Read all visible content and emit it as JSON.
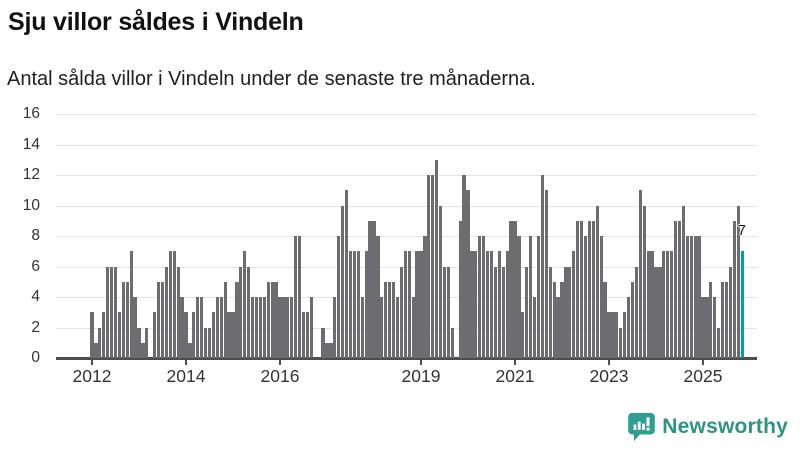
{
  "header": {
    "title": "Sju villor såldes i Vindeln",
    "subtitle": "Antal sålda villor i Vindeln under de senaste tre månaderna."
  },
  "chart_data": {
    "type": "bar",
    "title": "Sju villor såldes i Vindeln",
    "subtitle": "Antal sålda villor i Vindeln under de senaste tre månaderna.",
    "x_start": "2012-01",
    "x_end": "2025-11",
    "x_frequency": "monthly",
    "series_by_year": {
      "2012": [
        3,
        1,
        2,
        3,
        6,
        6,
        6,
        3,
        5,
        5,
        7,
        4
      ],
      "2013": [
        2,
        1,
        2,
        0,
        3,
        5,
        5,
        6,
        7,
        7,
        6,
        4
      ],
      "2014": [
        3,
        1,
        3,
        4,
        4,
        2,
        2,
        3,
        4,
        4,
        5,
        3
      ],
      "2015": [
        3,
        5,
        6,
        7,
        6,
        4,
        4,
        4,
        4,
        5,
        5,
        5
      ],
      "2016": [
        4,
        4,
        4,
        4,
        8,
        8,
        3,
        3,
        4,
        0,
        0,
        2
      ],
      "2017": [
        1,
        1,
        4,
        8,
        10,
        11,
        7,
        7,
        7,
        4,
        7,
        9
      ],
      "2018": [
        9,
        8,
        4,
        5,
        5,
        5,
        4,
        6,
        7,
        7,
        4,
        7
      ],
      "2019": [
        7,
        8,
        12,
        12,
        13,
        10,
        6,
        6,
        2,
        0,
        9,
        12
      ],
      "2020": [
        11,
        7,
        7,
        8,
        8,
        7,
        7,
        6,
        7,
        6,
        7,
        9
      ],
      "2021": [
        9,
        8,
        3,
        6,
        8,
        4,
        8,
        12,
        11,
        6,
        5,
        4
      ],
      "2022": [
        5,
        6,
        6,
        7,
        9,
        9,
        8,
        9,
        9,
        10,
        8,
        5
      ],
      "2023": [
        3,
        3,
        3,
        2,
        3,
        4,
        5,
        6,
        11,
        10,
        7,
        7
      ],
      "2024": [
        6,
        6,
        7,
        7,
        7,
        9,
        9,
        10,
        8,
        8,
        8,
        8
      ],
      "2025": [
        4,
        4,
        5,
        4,
        2,
        5,
        5,
        6,
        9,
        10,
        7
      ]
    },
    "highlight_last_bar": true,
    "last_value": 7,
    "annotation": {
      "text": "7",
      "target": "last-bar"
    },
    "x_tick_years": [
      "2012",
      "2014",
      "2016",
      "2019",
      "2021",
      "2023",
      "2025"
    ],
    "y_ticks": [
      0,
      2,
      4,
      6,
      8,
      10,
      12,
      14,
      16
    ],
    "ylim": [
      0,
      16
    ],
    "grid": "horizontal",
    "legend": "none",
    "bar_color": "#6c6c71",
    "highlight_color": "#00a39b",
    "axis_color": "#4d4d4d",
    "gridline_color": "#e4e4e4"
  },
  "branding": {
    "logo_text": "Newsworthy",
    "logo_text_color": "#2f9382",
    "logo_icon_color": "#2f9e8e",
    "logo_icon": "bar-chart-speech-bubble"
  }
}
